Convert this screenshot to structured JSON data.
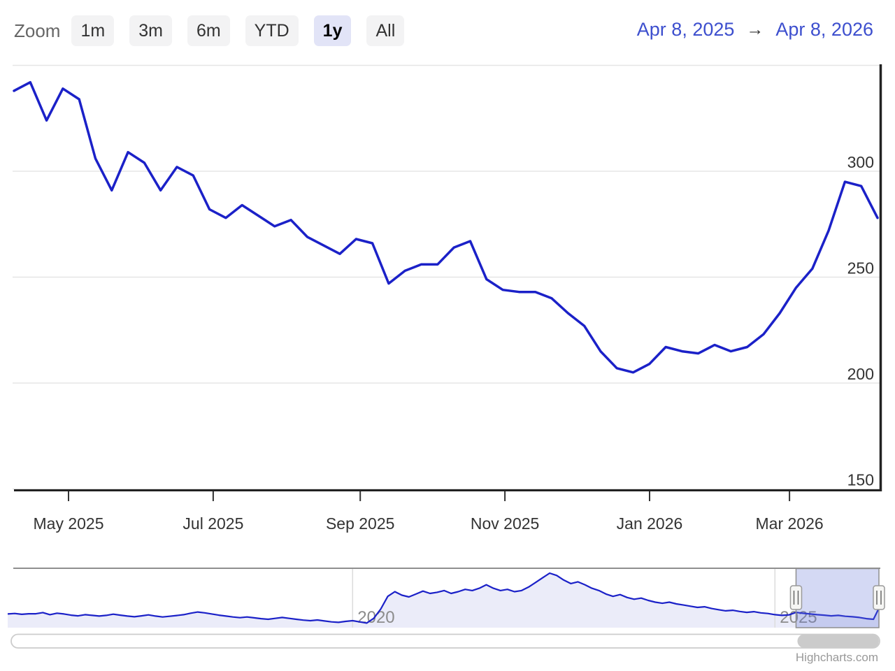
{
  "range_selector": {
    "zoom_label": "Zoom",
    "buttons": [
      {
        "label": "1m",
        "selected": false
      },
      {
        "label": "3m",
        "selected": false
      },
      {
        "label": "6m",
        "selected": false
      },
      {
        "label": "YTD",
        "selected": false
      },
      {
        "label": "1y",
        "selected": true
      },
      {
        "label": "All",
        "selected": false
      }
    ],
    "date_from": "Apr 8, 2025",
    "arrow": "→",
    "date_to": "Apr 8, 2026"
  },
  "credits": "Highcharts.com",
  "colors": {
    "series": "#1b21c8",
    "gridline": "#e6e6e6",
    "axis": "#222222",
    "text": "#333333",
    "nav_fill": "#ebecf9",
    "nav_outline": "#8f8f8f",
    "nav_gridline": "#dcdcdc",
    "nav_label": "#8c8c8c",
    "mask": "rgba(101,120,216,0.28)",
    "handle_fill": "#f6f6f4",
    "handle_stroke": "#9a9a9a",
    "handle_grip": "#666666",
    "scrollbar_track_stroke": "#cccccc",
    "scrollbar_thumb": "#cbcbcb",
    "button_bg": "#f3f3f4",
    "button_selected_bg": "#e2e4f7",
    "date_text": "#3d4fce",
    "credits_text": "#999999"
  },
  "chart_data": {
    "type": "line",
    "title": "",
    "x_range": {
      "start": "2025-04-08",
      "end": "2026-04-08"
    },
    "ylim": [
      150,
      352
    ],
    "grid": "horizontal-only",
    "legend": "none",
    "yticks": [
      {
        "value": 350,
        "label": ""
      },
      {
        "value": 300,
        "label": "300"
      },
      {
        "value": 250,
        "label": "250"
      },
      {
        "value": 200,
        "label": "200"
      },
      {
        "value": 150,
        "label": "150"
      }
    ],
    "xticks": [
      {
        "label": "May 2025",
        "date": "2025-05-01"
      },
      {
        "label": "Jul 2025",
        "date": "2025-07-01"
      },
      {
        "label": "Sep 2025",
        "date": "2025-09-01"
      },
      {
        "label": "Nov 2025",
        "date": "2025-11-01"
      },
      {
        "label": "Jan 2026",
        "date": "2026-01-01"
      },
      {
        "label": "Mar 2026",
        "date": "2026-03-01"
      }
    ],
    "series": [
      {
        "name": "main",
        "interval": "weekly",
        "start": "2025-04-08",
        "values": [
          338,
          342,
          324,
          339,
          334,
          306,
          291,
          309,
          304,
          291,
          302,
          298,
          282,
          278,
          284,
          279,
          274,
          277,
          269,
          265,
          261,
          268,
          266,
          247,
          253,
          256,
          256,
          264,
          267,
          249,
          244,
          243,
          243,
          240,
          233,
          227,
          215,
          207,
          205,
          209,
          217,
          215,
          214,
          218,
          215,
          217,
          223,
          233,
          245,
          254,
          272,
          295,
          293,
          278
        ]
      }
    ],
    "navigator": {
      "interval": "monthly",
      "start": "2015-12-01",
      "values": [
        268,
        272,
        265,
        270,
        270,
        280,
        262,
        275,
        268,
        258,
        252,
        262,
        256,
        250,
        256,
        266,
        258,
        250,
        244,
        252,
        260,
        250,
        242,
        248,
        255,
        262,
        275,
        285,
        278,
        268,
        258,
        250,
        242,
        236,
        242,
        235,
        228,
        222,
        230,
        238,
        230,
        222,
        215,
        210,
        216,
        208,
        200,
        196,
        204,
        210,
        200,
        190,
        230,
        310,
        420,
        460,
        430,
        415,
        440,
        465,
        445,
        455,
        470,
        445,
        460,
        480,
        470,
        490,
        520,
        490,
        470,
        480,
        460,
        470,
        500,
        540,
        580,
        620,
        600,
        560,
        530,
        545,
        520,
        490,
        470,
        440,
        420,
        435,
        410,
        395,
        405,
        385,
        370,
        360,
        370,
        355,
        345,
        335,
        325,
        330,
        315,
        305,
        295,
        300,
        290,
        282,
        288,
        278,
        272,
        262,
        256,
        260,
        282,
        274,
        268,
        262,
        258,
        252,
        256,
        248,
        244,
        238,
        228,
        222,
        330
      ],
      "value_range": [
        150,
        650
      ],
      "ticks": [
        {
          "index": 49,
          "label": "2020"
        },
        {
          "index": 109,
          "label": "2025"
        }
      ],
      "window": {
        "from_index": 112,
        "to_index": 124
      }
    }
  }
}
